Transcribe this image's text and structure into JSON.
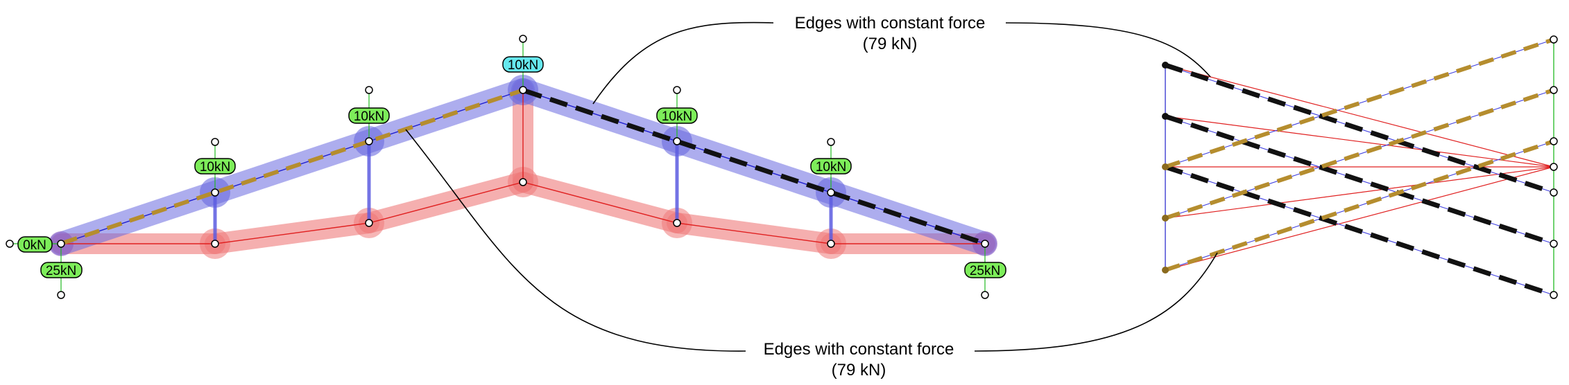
{
  "colors": {
    "compression": "#6a6ae0",
    "tension": "#ee7a7a",
    "load_badge": "#7ded5a",
    "apex_badge": "#66e8ee",
    "highlight_top": "#b58d2e",
    "highlight_bottom": "#111111",
    "support_line": "#22bb22"
  },
  "form_diagram": {
    "loads": {
      "left_support_horizontal": "0kN",
      "left_reaction": "25kN",
      "node_1": "10kN",
      "node_2": "10kN",
      "apex": "10kN",
      "node_4": "10kN",
      "node_5": "10kN",
      "right_reaction": "25kN"
    }
  },
  "annotations": {
    "top": {
      "line1": "Edges with constant force",
      "line2": "(79 kN)"
    },
    "bottom": {
      "line1": "Edges with constant force",
      "line2": "(79 kN)"
    }
  }
}
